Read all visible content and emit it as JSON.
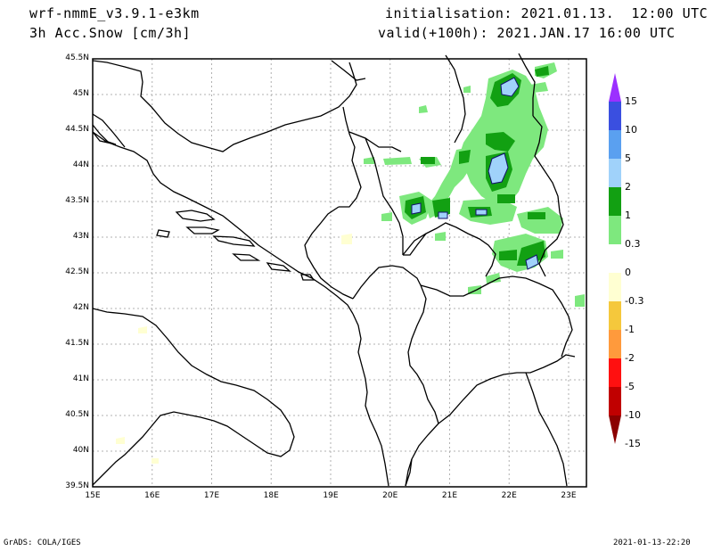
{
  "header": {
    "model": "wrf-nmmE_v3.9.1-e3km",
    "field": "3h Acc.Snow [cm/3h]",
    "initialisation": "initialisation: 2021.01.13.  12:00 UTC",
    "valid": "valid(+100h): 2021.JAN.17 16:00 UTC"
  },
  "footer": {
    "credit": "GrADS: COLA/IGES",
    "timestamp": "2021-01-13-22:20"
  },
  "axes": {
    "lat_labels": [
      "45.5N",
      "45N",
      "44.5N",
      "44N",
      "43.5N",
      "43N",
      "42.5N",
      "42N",
      "41.5N",
      "41N",
      "40.5N",
      "40N",
      "39.5N"
    ],
    "lon_labels": [
      "15E",
      "16E",
      "17E",
      "18E",
      "19E",
      "20E",
      "21E",
      "22E",
      "23E"
    ],
    "lat_range": [
      39.5,
      45.5
    ],
    "lon_range": [
      15.0,
      23.3
    ]
  },
  "colorbar": {
    "labels": [
      "15",
      "10",
      "5",
      "2",
      "1",
      "0.3",
      "0",
      "-0.3",
      "-1",
      "-2",
      "-5",
      "-10",
      "-15"
    ],
    "colors": [
      "#9b30ff",
      "#3a4fe0",
      "#5aa0f0",
      "#a0d2fa",
      "#12a012",
      "#7ee87e",
      "#ffffff",
      "#ffffd2",
      "#f5c83c",
      "#ff9a3c",
      "#ff1010",
      "#c00000",
      "#8b0000"
    ]
  }
}
